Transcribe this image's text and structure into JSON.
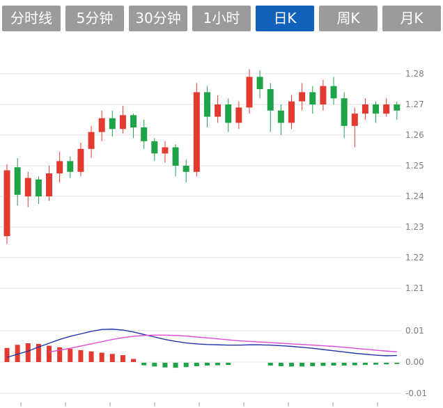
{
  "tabs": [
    {
      "label": "分时线",
      "active": false
    },
    {
      "label": "5分钟",
      "active": false
    },
    {
      "label": "30分钟",
      "active": false
    },
    {
      "label": "1小时",
      "active": false
    },
    {
      "label": "日K",
      "active": true
    },
    {
      "label": "周K",
      "active": false
    },
    {
      "label": "月K",
      "active": false
    }
  ],
  "colors": {
    "up": "#e23a30",
    "down": "#1ea348",
    "tab_bg": "#9b9b9b",
    "tab_active": "#1262bb",
    "grid": "#e2e2e2",
    "axis_label": "#7d7d7d",
    "dif": "#2233aa",
    "dea": "#e04ad8",
    "tick": "#999999"
  },
  "chart_data": {
    "type": "candlestick+macd",
    "period_selected": "日K",
    "main": {
      "ylabels": [
        1.28,
        1.27,
        1.26,
        1.25,
        1.24,
        1.23,
        1.22,
        1.21
      ],
      "ymin": 1.205,
      "ymax": 1.288,
      "grid": true,
      "candles_ohlc": [
        [
          1.227,
          1.2505,
          1.2245,
          1.2485
        ],
        [
          1.2495,
          1.2525,
          1.237,
          1.2405
        ],
        [
          1.24,
          1.248,
          1.2365,
          1.246
        ],
        [
          1.2455,
          1.2465,
          1.2375,
          1.24
        ],
        [
          1.24,
          1.25,
          1.2385,
          1.2475
        ],
        [
          1.2475,
          1.2545,
          1.2445,
          1.2515
        ],
        [
          1.2515,
          1.253,
          1.246,
          1.248
        ],
        [
          1.248,
          1.2575,
          1.2465,
          1.2555
        ],
        [
          1.2555,
          1.263,
          1.2525,
          1.261
        ],
        [
          1.261,
          1.268,
          1.258,
          1.2655
        ],
        [
          1.2655,
          1.268,
          1.2595,
          1.262
        ],
        [
          1.262,
          1.2695,
          1.2605,
          1.2665
        ],
        [
          1.2665,
          1.267,
          1.259,
          1.2625
        ],
        [
          1.2625,
          1.265,
          1.2555,
          1.258
        ],
        [
          1.258,
          1.259,
          1.2515,
          1.254
        ],
        [
          1.254,
          1.258,
          1.251,
          1.256
        ],
        [
          1.256,
          1.257,
          1.2465,
          1.25
        ],
        [
          1.25,
          1.252,
          1.2445,
          1.248
        ],
        [
          1.248,
          1.277,
          1.2465,
          1.274
        ],
        [
          1.274,
          1.276,
          1.2625,
          1.266
        ],
        [
          1.266,
          1.273,
          1.264,
          1.27
        ],
        [
          1.27,
          1.272,
          1.261,
          1.264
        ],
        [
          1.264,
          1.271,
          1.262,
          1.269
        ],
        [
          1.269,
          1.2815,
          1.267,
          1.279
        ],
        [
          1.279,
          1.281,
          1.272,
          1.275
        ],
        [
          1.275,
          1.277,
          1.261,
          1.268
        ],
        [
          1.268,
          1.27,
          1.26,
          1.264
        ],
        [
          1.264,
          1.273,
          1.262,
          1.271
        ],
        [
          1.271,
          1.277,
          1.268,
          1.274
        ],
        [
          1.274,
          1.276,
          1.267,
          1.27
        ],
        [
          1.27,
          1.278,
          1.268,
          1.276
        ],
        [
          1.276,
          1.279,
          1.27,
          1.272
        ],
        [
          1.272,
          1.274,
          1.259,
          1.263
        ],
        [
          1.263,
          1.269,
          1.256,
          1.267
        ],
        [
          1.267,
          1.272,
          1.265,
          1.27
        ],
        [
          1.27,
          1.271,
          1.264,
          1.267
        ],
        [
          1.267,
          1.272,
          1.266,
          1.27
        ],
        [
          1.27,
          1.271,
          1.265,
          1.268
        ]
      ]
    },
    "macd": {
      "ylabels": [
        0.01,
        0,
        -0.01
      ],
      "hist": [
        0.0045,
        0.0055,
        0.006,
        0.0058,
        0.0052,
        0.0047,
        0.0042,
        0.0038,
        0.0034,
        0.003,
        0.0026,
        0.0022,
        0.001,
        -0.0008,
        -0.0012,
        -0.0015,
        -0.0016,
        -0.0014,
        -0.0011,
        -0.0009,
        -0.0008,
        -0.0007,
        0,
        0,
        0,
        -0.0009,
        -0.0011,
        -0.0012,
        -0.0012,
        -0.0011,
        -0.001,
        -0.0009,
        -0.0009,
        -0.0008,
        -0.0007,
        -0.0006,
        -0.0005,
        -0.0004
      ],
      "dif": [
        0.0015,
        0.0025,
        0.0035,
        0.0048,
        0.006,
        0.0072,
        0.0082,
        0.009,
        0.0098,
        0.0104,
        0.0105,
        0.0102,
        0.0096,
        0.0088,
        0.008,
        0.0072,
        0.0066,
        0.0061,
        0.0058,
        0.0056,
        0.0055,
        0.0054,
        0.0054,
        0.0055,
        0.0055,
        0.0054,
        0.0052,
        0.005,
        0.0047,
        0.0044,
        0.004,
        0.0036,
        0.0032,
        0.0028,
        0.0025,
        0.0022,
        0.002,
        0.0021
      ],
      "dea": [
        null,
        null,
        null,
        null,
        0.0032,
        0.0038,
        0.0044,
        0.0051,
        0.0058,
        0.0065,
        0.0072,
        0.0078,
        0.0082,
        0.0085,
        0.0086,
        0.0086,
        0.0085,
        0.0083,
        0.008,
        0.0077,
        0.0074,
        0.0071,
        0.0068,
        0.0066,
        0.0064,
        0.0062,
        0.006,
        0.0058,
        0.0056,
        0.0054,
        0.0052,
        0.005,
        0.0047,
        0.0044,
        0.0041,
        0.0038,
        0.0035,
        0.0033
      ]
    }
  }
}
